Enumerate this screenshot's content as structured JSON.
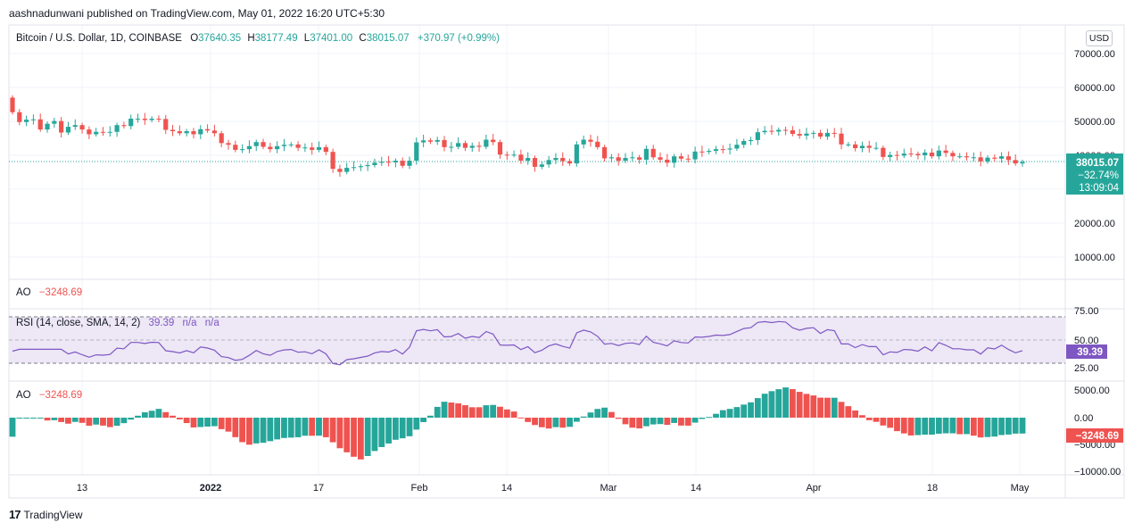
{
  "publisher_line": "aashnadunwani published on TradingView.com, May 01, 2022 16:20 UTC+5:30",
  "footer": {
    "logo_text": "TradingView",
    "logo_mark": "17"
  },
  "currency_button": "USD",
  "colors": {
    "up": "#26a69a",
    "down": "#ef5350",
    "rsi_line": "#7e57c2",
    "rsi_band": "#ede7f6",
    "grid": "#f0f3fa",
    "price_line": "#26a69a",
    "rsi_label_bg": "#7e57c2"
  },
  "price_legend": {
    "symbol": "Bitcoin / U.S. Dollar, 1D, COINBASE",
    "o_label": "O",
    "o": "37640.35",
    "h_label": "H",
    "h": "38177.49",
    "l_label": "L",
    "l": "37401.00",
    "c_label": "C",
    "c": "38015.07",
    "change": "+370.97 (+0.99%)"
  },
  "price_axis": {
    "ticks": [
      "70000.00",
      "60000.00",
      "50000.00",
      "40000.00",
      "20000.00",
      "10000.00"
    ],
    "last_price": "38015.07",
    "last_change_pct": "−32.74%",
    "countdown": "13:09:04"
  },
  "ao_pane1": {
    "label": "AO",
    "value": "−3248.69"
  },
  "rsi_pane": {
    "label": "RSI (14, close, SMA, 14, 2)",
    "value": "39.39",
    "na1": "n/a",
    "na2": "n/a",
    "ticks": [
      "75.00",
      "50.00",
      "25.00"
    ],
    "last_label": "39.39"
  },
  "ao_pane2": {
    "label": "AO",
    "value": "−3248.69",
    "ticks": [
      "5000.00",
      "0.00",
      "−5000.00",
      "−10000.00"
    ],
    "last_label": "−3248.69"
  },
  "time_axis": {
    "ticks": [
      "13",
      "2022",
      "17",
      "Feb",
      "14",
      "Mar",
      "14",
      "Apr",
      "18",
      "May"
    ]
  },
  "chart_data": {
    "type": "candlestick",
    "title": "Bitcoin / U.S. Dollar, 1D, COINBASE",
    "start_date": "2021-12-05",
    "end_date": "2022-05-01",
    "price_scale": {
      "min": 5000,
      "max": 75000,
      "last": 38015.07
    },
    "closes": [
      52700,
      49800,
      50500,
      50600,
      47600,
      49300,
      50100,
      46700,
      48400,
      48900,
      47600,
      46200,
      46900,
      46700,
      46900,
      48900,
      48600,
      50800,
      50800,
      50400,
      50800,
      50700,
      47500,
      47100,
      46500,
      47100,
      46200,
      47700,
      47300,
      46500,
      43600,
      43100,
      41600,
      41800,
      42700,
      43900,
      42500,
      41800,
      42700,
      43100,
      43200,
      42200,
      42300,
      41600,
      42400,
      41000,
      36000,
      35100,
      36300,
      36500,
      36800,
      37100,
      37800,
      38100,
      37900,
      38400,
      36900,
      38400,
      43800,
      44400,
      44000,
      44500,
      42400,
      42500,
      43600,
      42200,
      42800,
      42500,
      44600,
      43900,
      40200,
      40100,
      40200,
      38400,
      39200,
      36600,
      37300,
      38600,
      39200,
      38300,
      37600,
      43200,
      44600,
      44000,
      42400,
      39100,
      39400,
      38400,
      39200,
      39400,
      38700,
      41900,
      39400,
      38700,
      37800,
      39700,
      39000,
      38800,
      41100,
      41000,
      41300,
      41800,
      41700,
      42000,
      43100,
      44200,
      44500,
      46800,
      47200,
      47000,
      47500,
      47400,
      46300,
      45800,
      46400,
      46600,
      45500,
      46600,
      46400,
      43200,
      43200,
      42100,
      42800,
      42200,
      42200,
      39500,
      40100,
      39900,
      40500,
      40400,
      40000,
      40800,
      39700,
      41400,
      40700,
      39700,
      39700,
      39400,
      39400,
      38200,
      39300,
      39000,
      39700,
      38600,
      37600,
      38000
    ],
    "ao": {
      "scale": [
        -10000,
        5000
      ],
      "start": -3500,
      "note": "bars shown approximately"
    },
    "rsi": {
      "scale": [
        20,
        80
      ],
      "levels": [
        70,
        50,
        30
      ]
    }
  }
}
